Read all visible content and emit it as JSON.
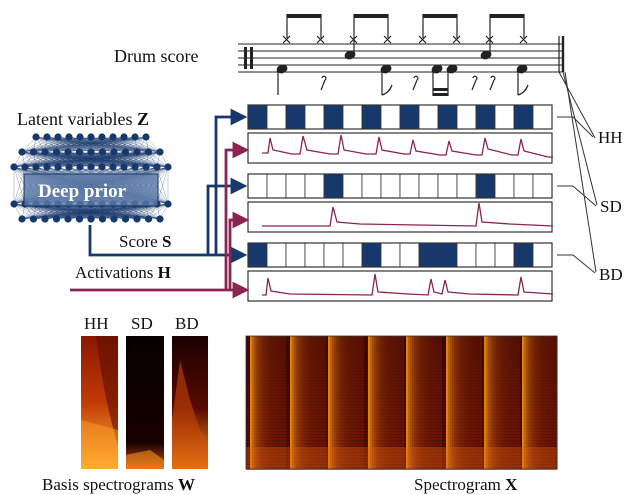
{
  "score_label": "Drum score",
  "latent": {
    "text": "Latent variables ",
    "symbol": "Z"
  },
  "deep_prior_label": "Deep prior",
  "score_s": {
    "text": "Score ",
    "symbol": "S"
  },
  "activations": {
    "text": "Activations ",
    "symbol": "H"
  },
  "instruments": [
    "HH",
    "SD",
    "BD"
  ],
  "basis": {
    "text": "Basis spectrograms ",
    "symbol": "W",
    "labels": [
      "HH",
      "SD",
      "BD"
    ]
  },
  "spectrogram": {
    "text": "Spectrogram ",
    "symbol": "X"
  },
  "grid": {
    "steps": 16,
    "rows": [
      {
        "name": "HH",
        "filled": [
          0,
          2,
          4,
          6,
          8,
          10,
          12,
          14
        ]
      },
      {
        "name": "SD",
        "filled": [
          4,
          12
        ]
      },
      {
        "name": "BD",
        "filled": [
          0,
          6,
          9,
          10,
          14
        ]
      }
    ]
  },
  "colors": {
    "navy": "#17386b",
    "maroon": "#8c2452",
    "frame": "#333333"
  }
}
